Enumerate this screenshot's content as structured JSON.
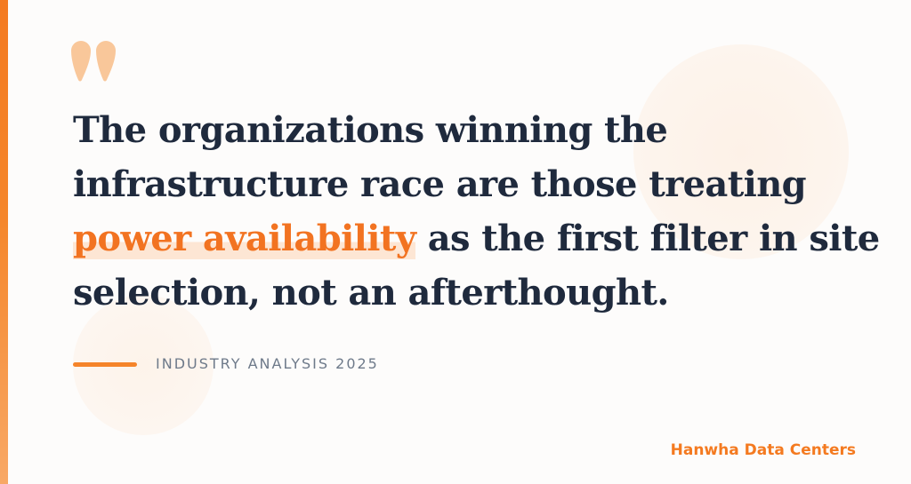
{
  "quote": {
    "lines": [
      "The organizations winning the",
      "infrastructure race are those treating"
    ],
    "highlight": "power availability",
    "after_highlight": " as the first filter in site",
    "last_line": "selection, not an afterthought."
  },
  "attribution": "INDUSTRY ANALYSIS 2025",
  "brand": "Hanwha Data Centers",
  "colors": {
    "accent": "#f47a20",
    "text": "#1f2a3d",
    "muted": "#6e7a8a",
    "quote_mark": "#f9c79a"
  },
  "icons": {
    "quote_mark": "double-quote-icon"
  }
}
